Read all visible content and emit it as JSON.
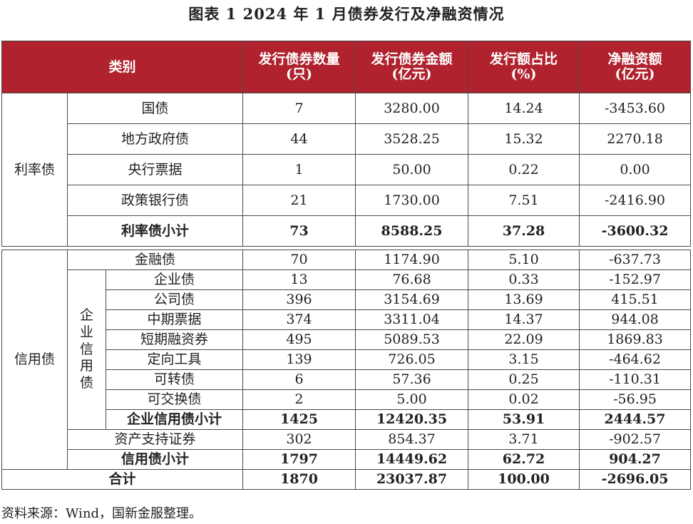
{
  "title": "图表 1 2024 年 1 月债券发行及净融资情况",
  "headers": {
    "category": "类别",
    "count": "发行债券数量\n(只)",
    "amount": "发行债券金额\n(亿元)",
    "share": "发行额占比\n(%)",
    "net": "净融资额\n(亿元)"
  },
  "groups": {
    "rate": "利率债",
    "credit": "信用债",
    "corporate_credit": "企业信用债"
  },
  "rate_rows": [
    {
      "name": "国债",
      "count": "7",
      "amount": "3280.00",
      "share": "14.24",
      "net": "-3453.60"
    },
    {
      "name": "地方政府债",
      "count": "44",
      "amount": "3528.25",
      "share": "15.32",
      "net": "2270.18"
    },
    {
      "name": "央行票据",
      "count": "1",
      "amount": "50.00",
      "share": "0.22",
      "net": "0.00"
    },
    {
      "name": "政策银行债",
      "count": "21",
      "amount": "1730.00",
      "share": "7.51",
      "net": "-2416.90"
    },
    {
      "name": "利率债小计",
      "count": "73",
      "amount": "8588.25",
      "share": "37.28",
      "net": "-3600.32"
    }
  ],
  "credit_top": {
    "name": "金融债",
    "count": "70",
    "amount": "1174.90",
    "share": "5.10",
    "net": "-637.73"
  },
  "corporate_rows": [
    {
      "name": "企业债",
      "count": "13",
      "amount": "76.68",
      "share": "0.33",
      "net": "-152.97"
    },
    {
      "name": "公司债",
      "count": "396",
      "amount": "3154.69",
      "share": "13.69",
      "net": "415.51"
    },
    {
      "name": "中期票据",
      "count": "374",
      "amount": "3311.04",
      "share": "14.37",
      "net": "944.08"
    },
    {
      "name": "短期融资券",
      "count": "495",
      "amount": "5089.53",
      "share": "22.09",
      "net": "1869.83"
    },
    {
      "name": "定向工具",
      "count": "139",
      "amount": "726.05",
      "share": "3.15",
      "net": "-464.62"
    },
    {
      "name": "可转债",
      "count": "6",
      "amount": "57.36",
      "share": "0.25",
      "net": "-110.31"
    },
    {
      "name": "可交换债",
      "count": "2",
      "amount": "5.00",
      "share": "0.02",
      "net": "-56.95"
    }
  ],
  "corporate_subtotal": {
    "name": "企业信用债小计",
    "count": "1425",
    "amount": "12420.35",
    "share": "53.91",
    "net": "2444.57"
  },
  "abs_row": {
    "name": "资产支持证券",
    "count": "302",
    "amount": "854.37",
    "share": "3.71",
    "net": "-902.57"
  },
  "credit_subtotal": {
    "name": "信用债小计",
    "count": "1797",
    "amount": "14449.62",
    "share": "62.72",
    "net": "904.27"
  },
  "total": {
    "name": "合计",
    "count": "1870",
    "amount": "23037.87",
    "share": "100.00",
    "net": "-2696.05"
  },
  "source": "资料来源：Wind，国新金服整理。",
  "colors": {
    "header_bg": "#b0222d",
    "header_text": "#ffffff"
  }
}
